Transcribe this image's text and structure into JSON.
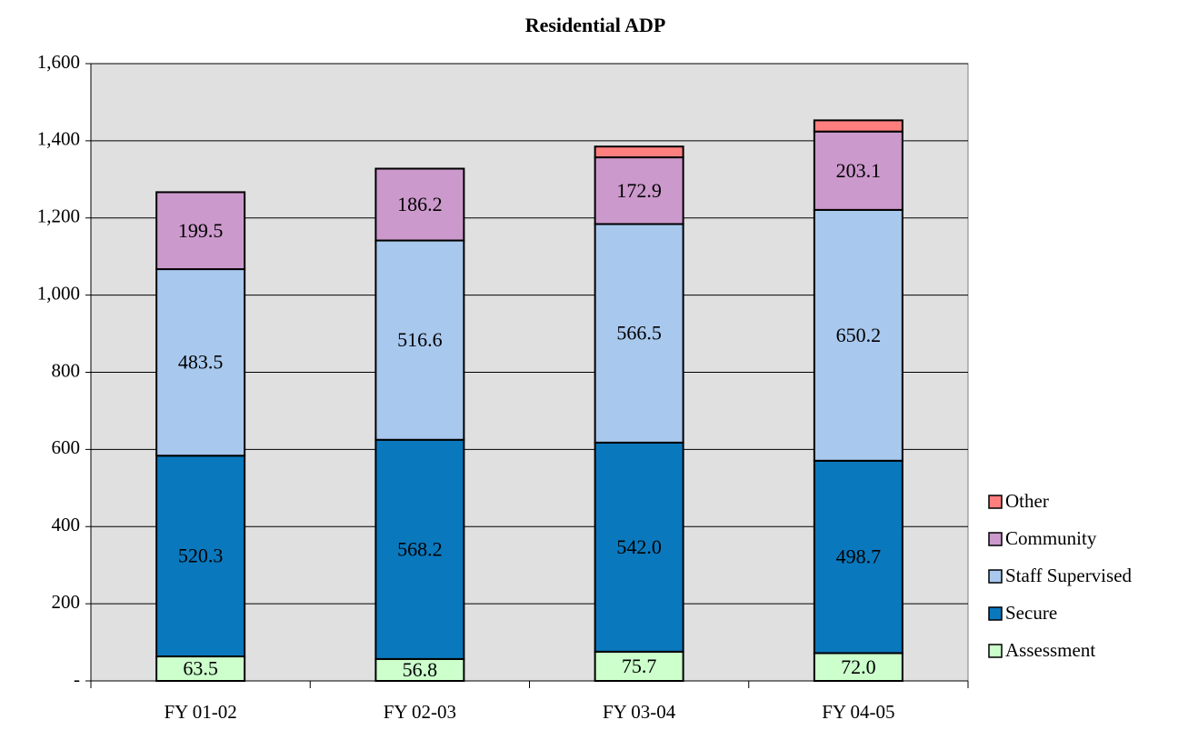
{
  "chart_data": {
    "type": "stacked_bar",
    "title": "Residential ADP",
    "categories": [
      "FY 01-02",
      "FY 02-03",
      "FY 03-04",
      "FY 04-05"
    ],
    "series": [
      {
        "name": "Assessment",
        "color": "#ccffcc",
        "values": [
          63.5,
          56.8,
          75.7,
          72.0
        ],
        "value_labels": [
          "63.5",
          "56.8",
          "75.7",
          "72.0"
        ]
      },
      {
        "name": "Secure",
        "color": "#0a78bd",
        "values": [
          520.3,
          568.2,
          542.0,
          498.7
        ],
        "value_labels": [
          "520.3",
          "568.2",
          "542.0",
          "498.7"
        ]
      },
      {
        "name": "Staff Supervised",
        "color": "#a8c8ee",
        "values": [
          483.5,
          516.6,
          566.5,
          650.2
        ],
        "value_labels": [
          "483.5",
          "516.6",
          "566.5",
          "650.2"
        ]
      },
      {
        "name": "Community",
        "color": "#cc99cc",
        "values": [
          199.5,
          186.2,
          172.9,
          203.1
        ],
        "value_labels": [
          "199.5",
          "186.2",
          "172.9",
          "203.1"
        ]
      },
      {
        "name": "Other",
        "color": "#ff7f7f",
        "values": [
          0,
          0,
          28,
          29
        ]
      }
    ],
    "ylim": [
      0,
      1600
    ],
    "yticks": [
      {
        "value": 0,
        "label": "-"
      },
      200,
      400,
      600,
      800,
      {
        "value": 1000,
        "label": "1,000"
      },
      {
        "value": 1200,
        "label": "1,200"
      },
      {
        "value": 1400,
        "label": "1,400"
      },
      {
        "value": 1600,
        "label": "1,600"
      }
    ],
    "grid": true,
    "legend": "right"
  }
}
